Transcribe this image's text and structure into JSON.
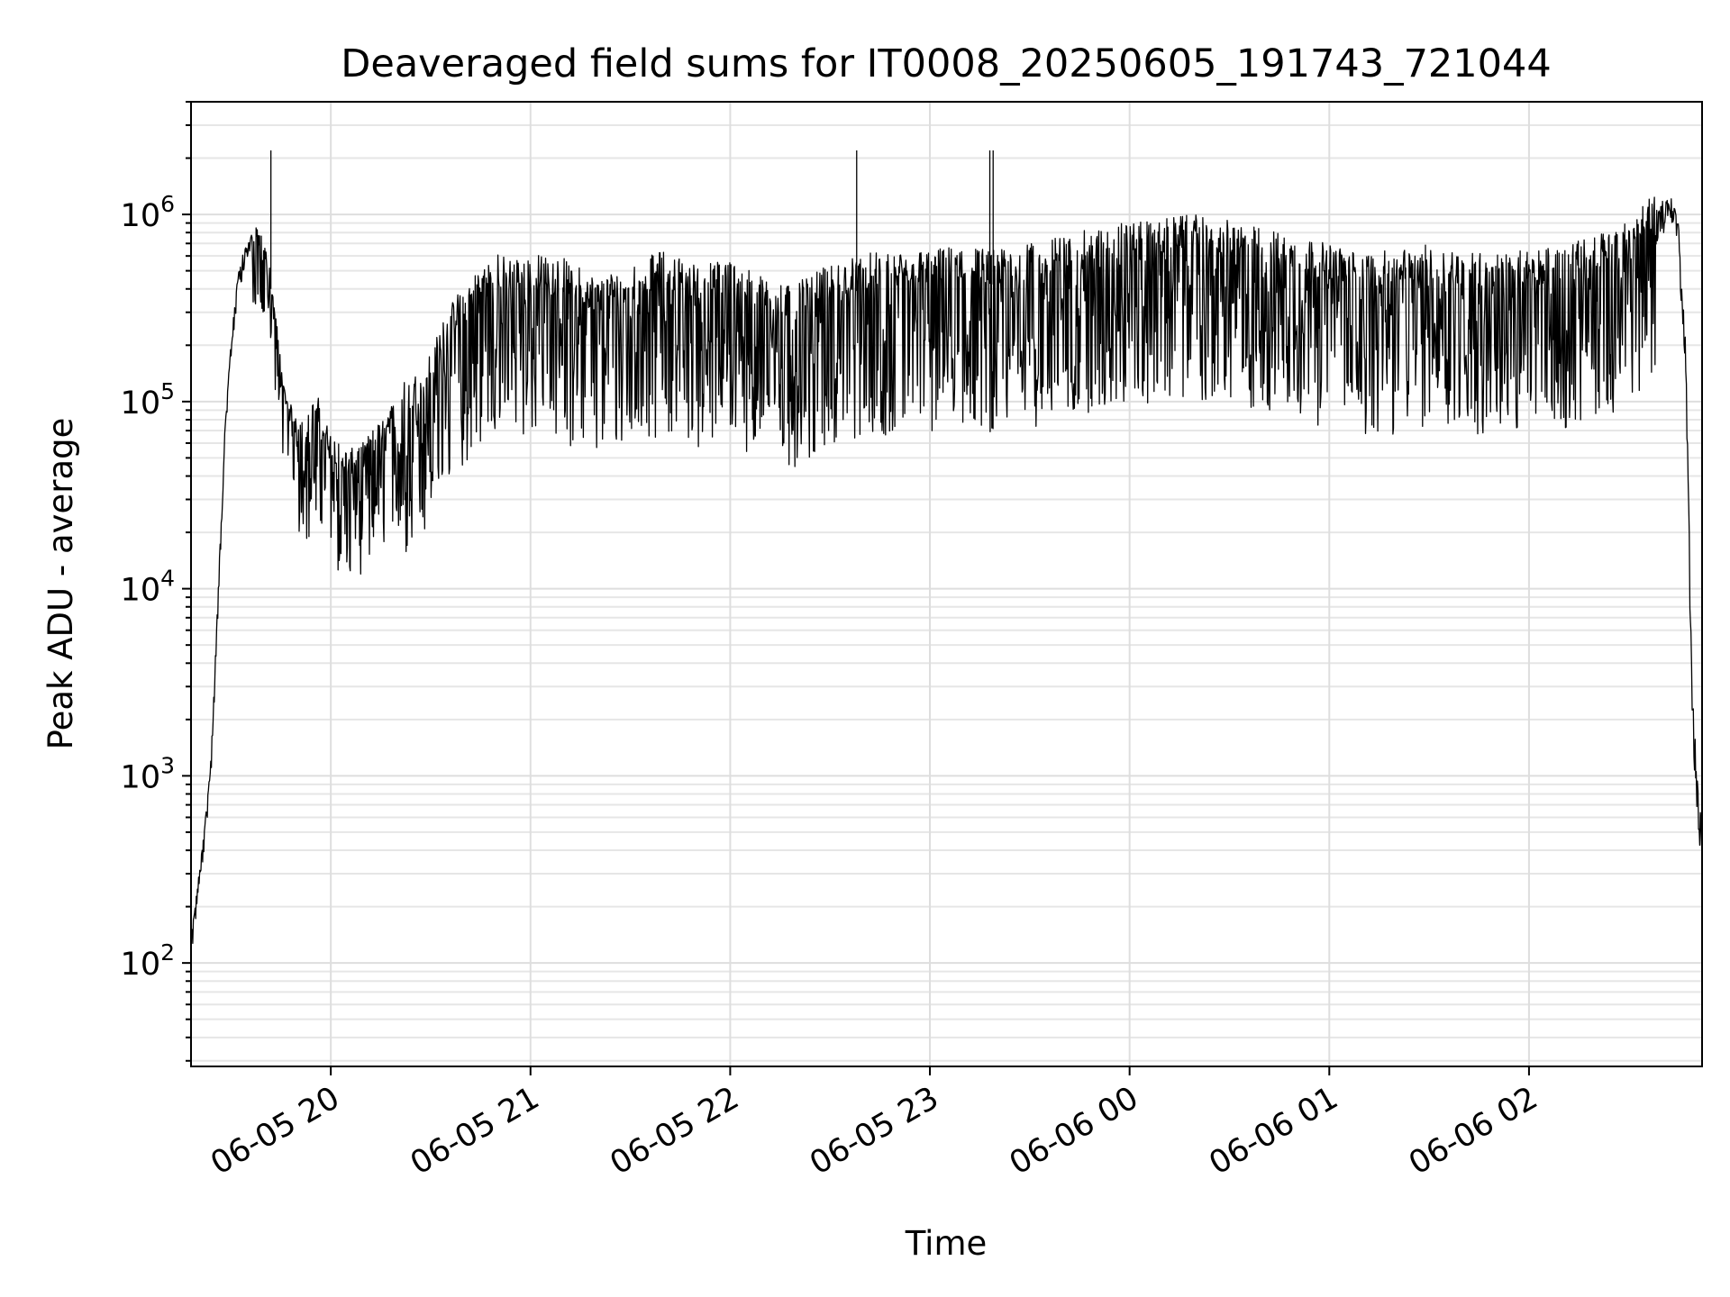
{
  "chart_data": {
    "type": "line",
    "title": "Deaveraged field sums for IT0008_20250605_191743_721044",
    "xlabel": "Time",
    "ylabel": "Peak ADU - average",
    "yscale": "log",
    "ylim": [
      28,
      4000000
    ],
    "xlim": [
      "06-05 19:18",
      "06-06 02:52"
    ],
    "grid": "on (major and minor)",
    "x_tick_labels": [
      "06-05 20",
      "06-05 21",
      "06-05 22",
      "06-05 23",
      "06-06 00",
      "06-06 01",
      "06-06 02"
    ],
    "y_tick_labels": [
      {
        "base": "10",
        "exp": "2"
      },
      {
        "base": "10",
        "exp": "3"
      },
      {
        "base": "10",
        "exp": "4"
      },
      {
        "base": "10",
        "exp": "5"
      },
      {
        "base": "10",
        "exp": "6"
      }
    ],
    "series": [
      {
        "color": "#000000",
        "x": [
          "06-05 19:18",
          "06-05 19:20",
          "06-05 19:22",
          "06-05 19:24",
          "06-05 19:26",
          "06-05 19:28",
          "06-05 19:30",
          "06-05 19:32",
          "06-05 19:34",
          "06-05 19:36",
          "06-05 19:38",
          "06-05 19:40",
          "06-05 19:42",
          "06-05 19:44",
          "06-05 19:46",
          "06-05 19:48",
          "06-05 19:50",
          "06-05 19:52",
          "06-05 19:54",
          "06-05 19:56",
          "06-05 19:58",
          "06-05 20:00",
          "06-05 20:05",
          "06-05 20:10",
          "06-05 20:15",
          "06-05 20:20",
          "06-05 20:25",
          "06-05 20:30",
          "06-05 20:35",
          "06-05 20:40",
          "06-05 20:45",
          "06-05 20:50",
          "06-05 20:55",
          "06-05 21:00",
          "06-05 21:10",
          "06-05 21:20",
          "06-05 21:30",
          "06-05 21:40",
          "06-05 21:50",
          "06-05 22:00",
          "06-05 22:10",
          "06-05 22:20",
          "06-05 22:30",
          "06-05 22:40",
          "06-05 22:50",
          "06-05 23:00",
          "06-05 23:10",
          "06-05 23:20",
          "06-05 23:30",
          "06-05 23:40",
          "06-05 23:50",
          "06-06 00:00",
          "06-06 00:10",
          "06-06 00:20",
          "06-06 00:30",
          "06-06 00:40",
          "06-06 00:50",
          "06-06 01:00",
          "06-06 01:10",
          "06-06 01:20",
          "06-06 01:30",
          "06-06 01:40",
          "06-06 01:50",
          "06-06 02:00",
          "06-06 02:10",
          "06-06 02:20",
          "06-06 02:30",
          "06-06 02:35",
          "06-06 02:40",
          "06-06 02:43",
          "06-06 02:45",
          "06-06 02:47",
          "06-06 02:49",
          "06-06 02:51",
          "06-06 02:52"
        ],
        "y": [
          130,
          250,
          500,
          1200,
          8000,
          60000,
          200000,
          450000,
          620000,
          720000,
          700000,
          600000,
          400000,
          200000,
          100000,
          80000,
          70000,
          60000,
          70000,
          80000,
          60000,
          50000,
          40000,
          45000,
          60000,
          80000,
          90000,
          120000,
          200000,
          280000,
          350000,
          400000,
          380000,
          400000,
          380000,
          300000,
          350000,
          420000,
          350000,
          380000,
          300000,
          280000,
          350000,
          400000,
          420000,
          420000,
          450000,
          420000,
          450000,
          500000,
          550000,
          600000,
          620000,
          650000,
          600000,
          550000,
          500000,
          450000,
          400000,
          420000,
          450000,
          420000,
          400000,
          420000,
          450000,
          500000,
          600000,
          800000,
          1100000,
          1150000,
          800000,
          200000,
          3000,
          700,
          450
        ]
      }
    ]
  }
}
